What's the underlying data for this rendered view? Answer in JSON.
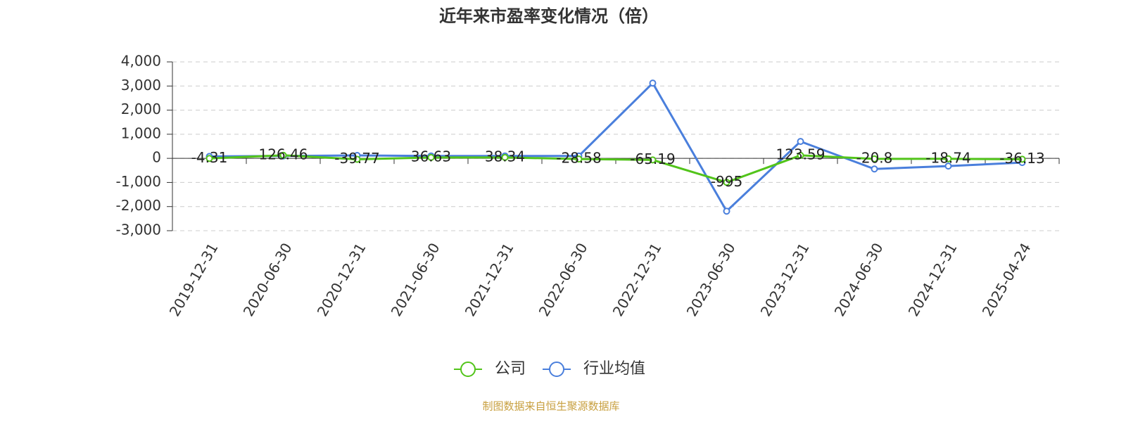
{
  "chart_data": {
    "type": "line",
    "title": "近年来市盈率变化情况（倍）",
    "categories": [
      "2019-12-31",
      "2020-06-30",
      "2020-12-31",
      "2021-06-30",
      "2021-12-31",
      "2022-06-30",
      "2022-12-31",
      "2023-06-30",
      "2023-12-31",
      "2024-06-30",
      "2024-12-31",
      "2025-04-24"
    ],
    "series": [
      {
        "name": "公司",
        "color": "#52c41a",
        "values": [
          -4.31,
          126.46,
          -39.77,
          36.63,
          38.34,
          -28.58,
          -65.19,
          -995,
          123.59,
          -20.8,
          -18.74,
          -36.13
        ]
      },
      {
        "name": "行业均值",
        "color": "#4a7fdc",
        "values": [
          80,
          100,
          120,
          100,
          100,
          100,
          3120,
          -2190,
          700,
          -440,
          -320,
          -175
        ]
      }
    ],
    "ylim": [
      -3000,
      4000
    ],
    "yticks": [
      {
        "value": -3000,
        "label": "-3,000"
      },
      {
        "value": -2000,
        "label": "-2,000"
      },
      {
        "value": -1000,
        "label": "-1,000"
      },
      0,
      {
        "value": 1000,
        "label": "1,000"
      },
      {
        "value": 2000,
        "label": "2,000"
      },
      {
        "value": 3000,
        "label": "3,000"
      },
      {
        "value": 4000,
        "label": "4,000"
      }
    ],
    "grid": true,
    "source": "制图数据来自恒生聚源数据库"
  }
}
